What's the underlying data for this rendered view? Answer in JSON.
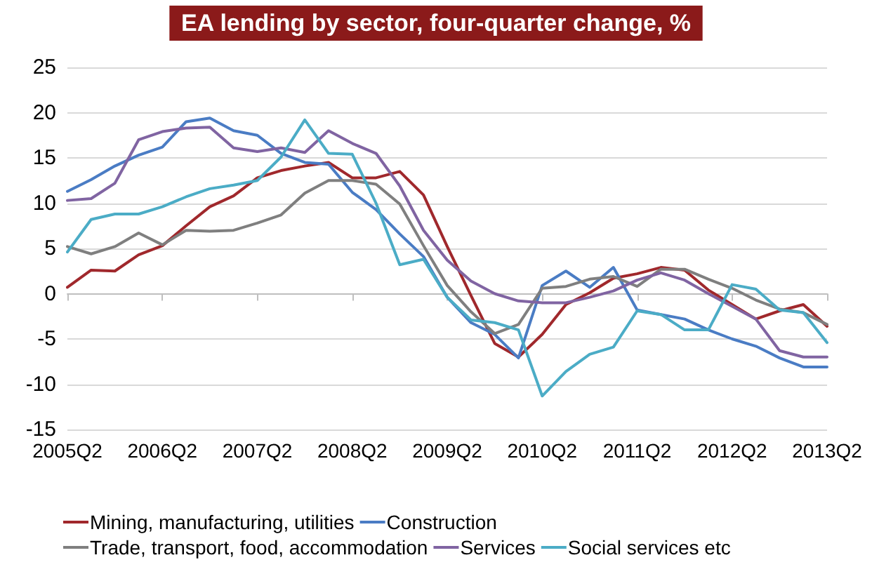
{
  "chart_data": {
    "type": "line",
    "title": "EA lending by sector, four-quarter change, %",
    "categories": [
      "2005Q2",
      null,
      null,
      null,
      "2006Q2",
      null,
      null,
      null,
      "2007Q2",
      null,
      null,
      null,
      "2008Q2",
      null,
      null,
      null,
      "2009Q2",
      null,
      null,
      null,
      "2010Q2",
      null,
      null,
      null,
      "2011Q2",
      null,
      null,
      null,
      "2012Q2",
      null,
      null,
      null,
      "2013Q2"
    ],
    "series": [
      {
        "name": "Mining, manufacturing, utilities",
        "color": "#a0282c",
        "values": [
          0.7,
          2.6,
          2.5,
          4.3,
          5.3,
          7.5,
          9.6,
          10.8,
          12.8,
          13.6,
          14.1,
          14.5,
          12.8,
          12.8,
          13.5,
          10.9,
          5.2,
          -0.2,
          -5.5,
          -7.0,
          -4.5,
          -1.2,
          0.1,
          1.7,
          2.2,
          2.9,
          2.6,
          0.4,
          -1.2,
          -2.8,
          -1.9,
          -1.2,
          -3.6
        ]
      },
      {
        "name": "Construction",
        "color": "#4a7cc4",
        "values": [
          11.3,
          12.6,
          14.1,
          15.3,
          16.2,
          19.0,
          19.4,
          18.0,
          17.5,
          15.5,
          14.5,
          14.3,
          11.2,
          9.3,
          6.6,
          4.1,
          -0.4,
          -3.2,
          -4.5,
          -7.1,
          0.9,
          2.5,
          0.7,
          2.9,
          -1.8,
          -2.3,
          -2.8,
          -4.0,
          -5.0,
          -5.8,
          -7.1,
          -8.1,
          -8.1
        ]
      },
      {
        "name": "Trade, transport, food, accommodation",
        "color": "#7f7f7f",
        "values": [
          5.2,
          4.4,
          5.2,
          6.7,
          5.4,
          7.0,
          6.9,
          7.0,
          7.8,
          8.7,
          11.1,
          12.5,
          12.5,
          12.1,
          9.9,
          5.3,
          0.9,
          -2.0,
          -4.4,
          -3.4,
          0.6,
          0.8,
          1.6,
          1.9,
          0.8,
          2.7,
          2.7,
          1.6,
          0.6,
          -0.7,
          -1.7,
          -2.1,
          -3.4
        ]
      },
      {
        "name": "Services",
        "color": "#8064a2",
        "values": [
          10.3,
          10.5,
          12.2,
          17.0,
          17.9,
          18.3,
          18.4,
          16.1,
          15.7,
          16.1,
          15.6,
          18.0,
          16.6,
          15.5,
          11.9,
          7.0,
          3.7,
          1.4,
          0.0,
          -0.8,
          -1.0,
          -1.0,
          -0.4,
          0.3,
          1.5,
          2.3,
          1.5,
          0.0,
          -1.4,
          -2.8,
          -6.3,
          -7.0,
          -7.0
        ]
      },
      {
        "name": "Social services etc",
        "color": "#4bacc6",
        "values": [
          4.6,
          8.2,
          8.8,
          8.8,
          9.6,
          10.7,
          11.6,
          12.0,
          12.5,
          15.1,
          19.2,
          15.5,
          15.4,
          10.0,
          3.2,
          3.8,
          -0.4,
          -2.9,
          -3.2,
          -4.0,
          -11.3,
          -8.6,
          -6.7,
          -5.9,
          -1.9,
          -2.3,
          -4.0,
          -4.0,
          1.0,
          0.5,
          -1.8,
          -2.1,
          -5.4
        ]
      }
    ],
    "ylim": [
      -15,
      25
    ],
    "yticks": [
      -15,
      -10,
      -5,
      0,
      5,
      10,
      15,
      20,
      25
    ],
    "grid": "y",
    "legend": "bottom",
    "marker": "none",
    "line_style": "solid"
  }
}
